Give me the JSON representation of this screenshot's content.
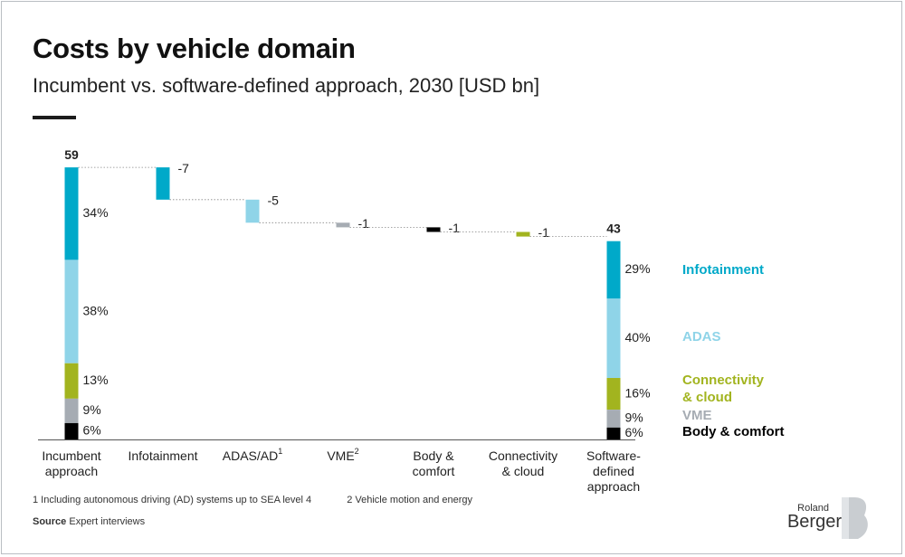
{
  "header": {
    "title": "Costs by vehicle domain",
    "subtitle": "Incumbent vs. software-defined approach, 2030 [USD bn]"
  },
  "chart_data": {
    "type": "waterfall",
    "unit": "USD bn",
    "colors": {
      "Infotainment": "#00a9c9",
      "ADAS": "#8fd4e8",
      "Connectivity & cloud": "#a2b41f",
      "VME": "#a6acb3",
      "Body & comfort": "#000000"
    },
    "start": {
      "label": "Incumbent approach",
      "total": 59,
      "total_label": "59",
      "breakdown": [
        {
          "name": "Infotainment",
          "share": 34,
          "label": "34%"
        },
        {
          "name": "ADAS",
          "share": 38,
          "label": "38%"
        },
        {
          "name": "Connectivity & cloud",
          "share": 13,
          "label": "13%"
        },
        {
          "name": "VME",
          "share": 9,
          "label": "9%"
        },
        {
          "name": "Body & comfort",
          "share": 6,
          "label": "6%"
        }
      ]
    },
    "steps": [
      {
        "label": "Infotainment",
        "sup": "",
        "name": "Infotainment",
        "value": -7,
        "value_label": "-7"
      },
      {
        "label": "ADAS/AD",
        "sup": "1",
        "name": "ADAS",
        "value": -5,
        "value_label": "-5"
      },
      {
        "label": "VME",
        "sup": "2",
        "name": "VME",
        "value": -1,
        "value_label": "-1"
      },
      {
        "label": "Body & comfort",
        "sup": "",
        "name": "Body & comfort",
        "value": -1,
        "value_label": "-1"
      },
      {
        "label": "Connectivity & cloud",
        "sup": "",
        "name": "Connectivity & cloud",
        "value": -1,
        "value_label": "-1"
      }
    ],
    "end": {
      "label": "Software-defined approach",
      "total": 43,
      "total_label": "43",
      "breakdown": [
        {
          "name": "Infotainment",
          "share": 29,
          "label": "29%"
        },
        {
          "name": "ADAS",
          "share": 40,
          "label": "40%"
        },
        {
          "name": "Connectivity & cloud",
          "share": 16,
          "label": "16%"
        },
        {
          "name": "VME",
          "share": 9,
          "label": "9%"
        },
        {
          "name": "Body & comfort",
          "share": 6,
          "label": "6%"
        }
      ]
    },
    "legend": [
      {
        "name": "Infotainment",
        "text": "Infotainment"
      },
      {
        "name": "ADAS",
        "text": "ADAS"
      },
      {
        "name": "Connectivity & cloud",
        "text": "Connectivity & cloud"
      },
      {
        "name": "VME",
        "text": "VME"
      },
      {
        "name": "Body & comfort",
        "text": "Body & comfort"
      }
    ],
    "legend_position": "right"
  },
  "footnotes": {
    "note1": "1 Including autonomous driving (AD) systems up to SEA level 4",
    "note2": "2 Vehicle motion and energy",
    "source_label": "Source",
    "source_text": "Expert interviews"
  },
  "logo": {
    "word1": "Roland",
    "word2": "Berger"
  }
}
